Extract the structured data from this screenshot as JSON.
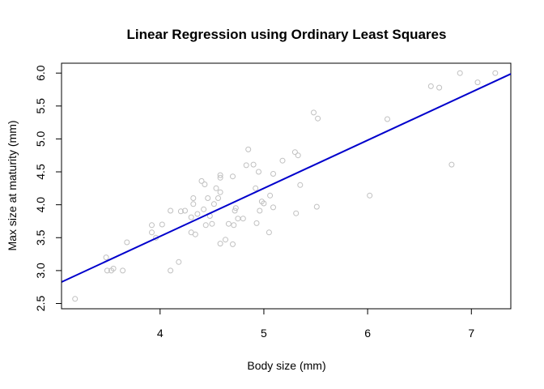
{
  "chart_data": {
    "type": "scatter",
    "title": "Linear Regression using Ordinary Least Squares",
    "xlabel": "Body size (mm)",
    "ylabel": "Max size at maturity (mm)",
    "xlim": [
      3.05,
      7.38
    ],
    "ylim": [
      2.42,
      6.15
    ],
    "xticks": [
      "4",
      "5",
      "6",
      "7"
    ],
    "yticks": [
      "2.5",
      "3.0",
      "3.5",
      "4.0",
      "4.5",
      "5.0",
      "5.5",
      "6.0"
    ],
    "grid": false,
    "legend": "none",
    "point_color": "#c0c0c0",
    "line_color": "#0000cc",
    "regression_line": {
      "intercept": 0.6,
      "slope": 0.73
    },
    "points": [
      [
        3.18,
        2.57
      ],
      [
        3.48,
        3.2
      ],
      [
        3.49,
        3.0
      ],
      [
        3.53,
        3.0
      ],
      [
        3.55,
        3.03
      ],
      [
        3.64,
        3.0
      ],
      [
        3.68,
        3.43
      ],
      [
        3.92,
        3.69
      ],
      [
        3.92,
        3.58
      ],
      [
        3.96,
        3.5
      ],
      [
        4.02,
        3.7
      ],
      [
        4.1,
        3.91
      ],
      [
        4.1,
        3.0
      ],
      [
        4.18,
        3.13
      ],
      [
        4.2,
        3.9
      ],
      [
        4.24,
        3.91
      ],
      [
        4.3,
        3.58
      ],
      [
        4.3,
        3.81
      ],
      [
        4.32,
        4.1
      ],
      [
        4.32,
        4.01
      ],
      [
        4.34,
        3.55
      ],
      [
        4.36,
        3.86
      ],
      [
        4.4,
        4.36
      ],
      [
        4.42,
        3.93
      ],
      [
        4.43,
        4.31
      ],
      [
        4.44,
        3.69
      ],
      [
        4.46,
        4.1
      ],
      [
        4.48,
        3.83
      ],
      [
        4.5,
        3.71
      ],
      [
        4.52,
        4.01
      ],
      [
        4.54,
        4.25
      ],
      [
        4.56,
        4.1
      ],
      [
        4.58,
        4.19
      ],
      [
        4.58,
        4.45
      ],
      [
        4.58,
        4.41
      ],
      [
        4.58,
        3.41
      ],
      [
        4.63,
        3.47
      ],
      [
        4.66,
        3.71
      ],
      [
        4.7,
        3.4
      ],
      [
        4.7,
        4.43
      ],
      [
        4.71,
        3.69
      ],
      [
        4.72,
        3.91
      ],
      [
        4.73,
        3.95
      ],
      [
        4.75,
        3.79
      ],
      [
        4.8,
        3.79
      ],
      [
        4.83,
        4.6
      ],
      [
        4.85,
        4.84
      ],
      [
        4.9,
        4.61
      ],
      [
        4.92,
        4.25
      ],
      [
        4.93,
        3.72
      ],
      [
        4.95,
        4.5
      ],
      [
        4.96,
        3.91
      ],
      [
        4.98,
        4.05
      ],
      [
        5.0,
        4.02
      ],
      [
        5.05,
        3.58
      ],
      [
        5.06,
        4.14
      ],
      [
        5.09,
        4.47
      ],
      [
        5.09,
        3.96
      ],
      [
        5.18,
        4.67
      ],
      [
        5.3,
        4.8
      ],
      [
        5.31,
        3.87
      ],
      [
        5.33,
        4.75
      ],
      [
        5.35,
        4.3
      ],
      [
        5.48,
        5.4
      ],
      [
        5.51,
        3.97
      ],
      [
        5.52,
        5.31
      ],
      [
        6.02,
        4.14
      ],
      [
        6.19,
        5.3
      ],
      [
        6.61,
        5.8
      ],
      [
        6.69,
        5.78
      ],
      [
        6.81,
        4.61
      ],
      [
        6.89,
        6.0
      ],
      [
        7.06,
        5.86
      ],
      [
        7.23,
        6.0
      ]
    ]
  }
}
